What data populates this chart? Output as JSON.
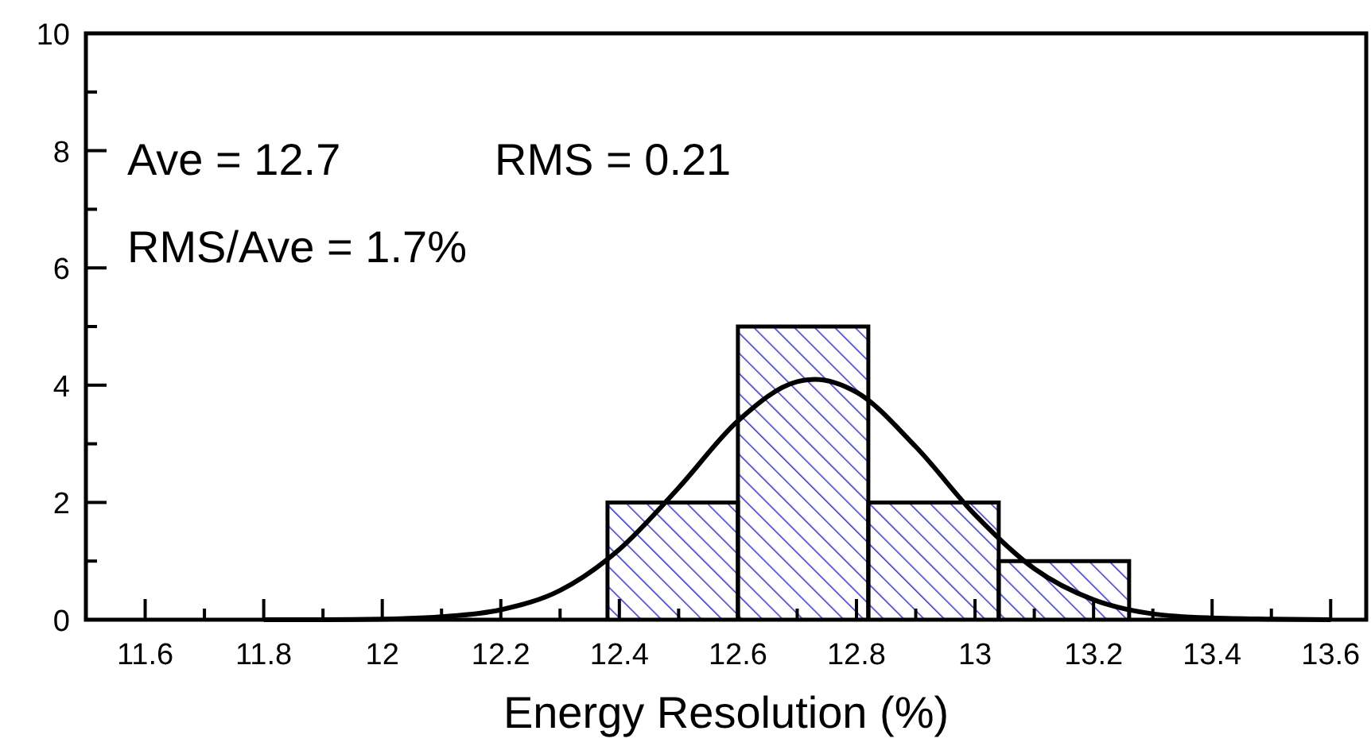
{
  "chart_data": {
    "type": "histogram",
    "xlabel": "Energy Resolution (%)",
    "bins": [
      12.38,
      12.6,
      12.82,
      13.04,
      13.26
    ],
    "values": [
      2,
      5,
      2,
      1
    ],
    "color": "#3333cc",
    "series": [
      {
        "type": "line",
        "color": "#000000",
        "x": [
          11.8,
          11.9,
          12.0,
          12.1,
          12.2,
          12.3,
          12.4,
          12.5,
          12.6,
          12.7,
          12.73,
          12.8,
          12.9,
          13.0,
          13.1,
          13.2,
          13.3,
          13.4,
          13.5,
          13.6
        ],
        "values": [
          0,
          0,
          0.01,
          0.05,
          0.17,
          0.5,
          1.2,
          2.25,
          3.39,
          4.06,
          4.1,
          3.88,
          2.95,
          1.79,
          0.87,
          0.34,
          0.1,
          0.03,
          0.01,
          0
        ]
      }
    ],
    "xlim": [
      11.5,
      13.66
    ],
    "ylim": [
      0,
      10
    ],
    "xticks": [
      11.6,
      11.8,
      12,
      12.2,
      12.4,
      12.6,
      12.8,
      13,
      13.2,
      13.4,
      13.6
    ],
    "yticks": [
      0,
      2,
      4,
      6,
      8,
      10
    ],
    "annotations": [
      "Ave = 12.7",
      "RMS = 0.21",
      "RMS/Ave = 1.7%"
    ],
    "grid": false,
    "line_style": "solid"
  }
}
